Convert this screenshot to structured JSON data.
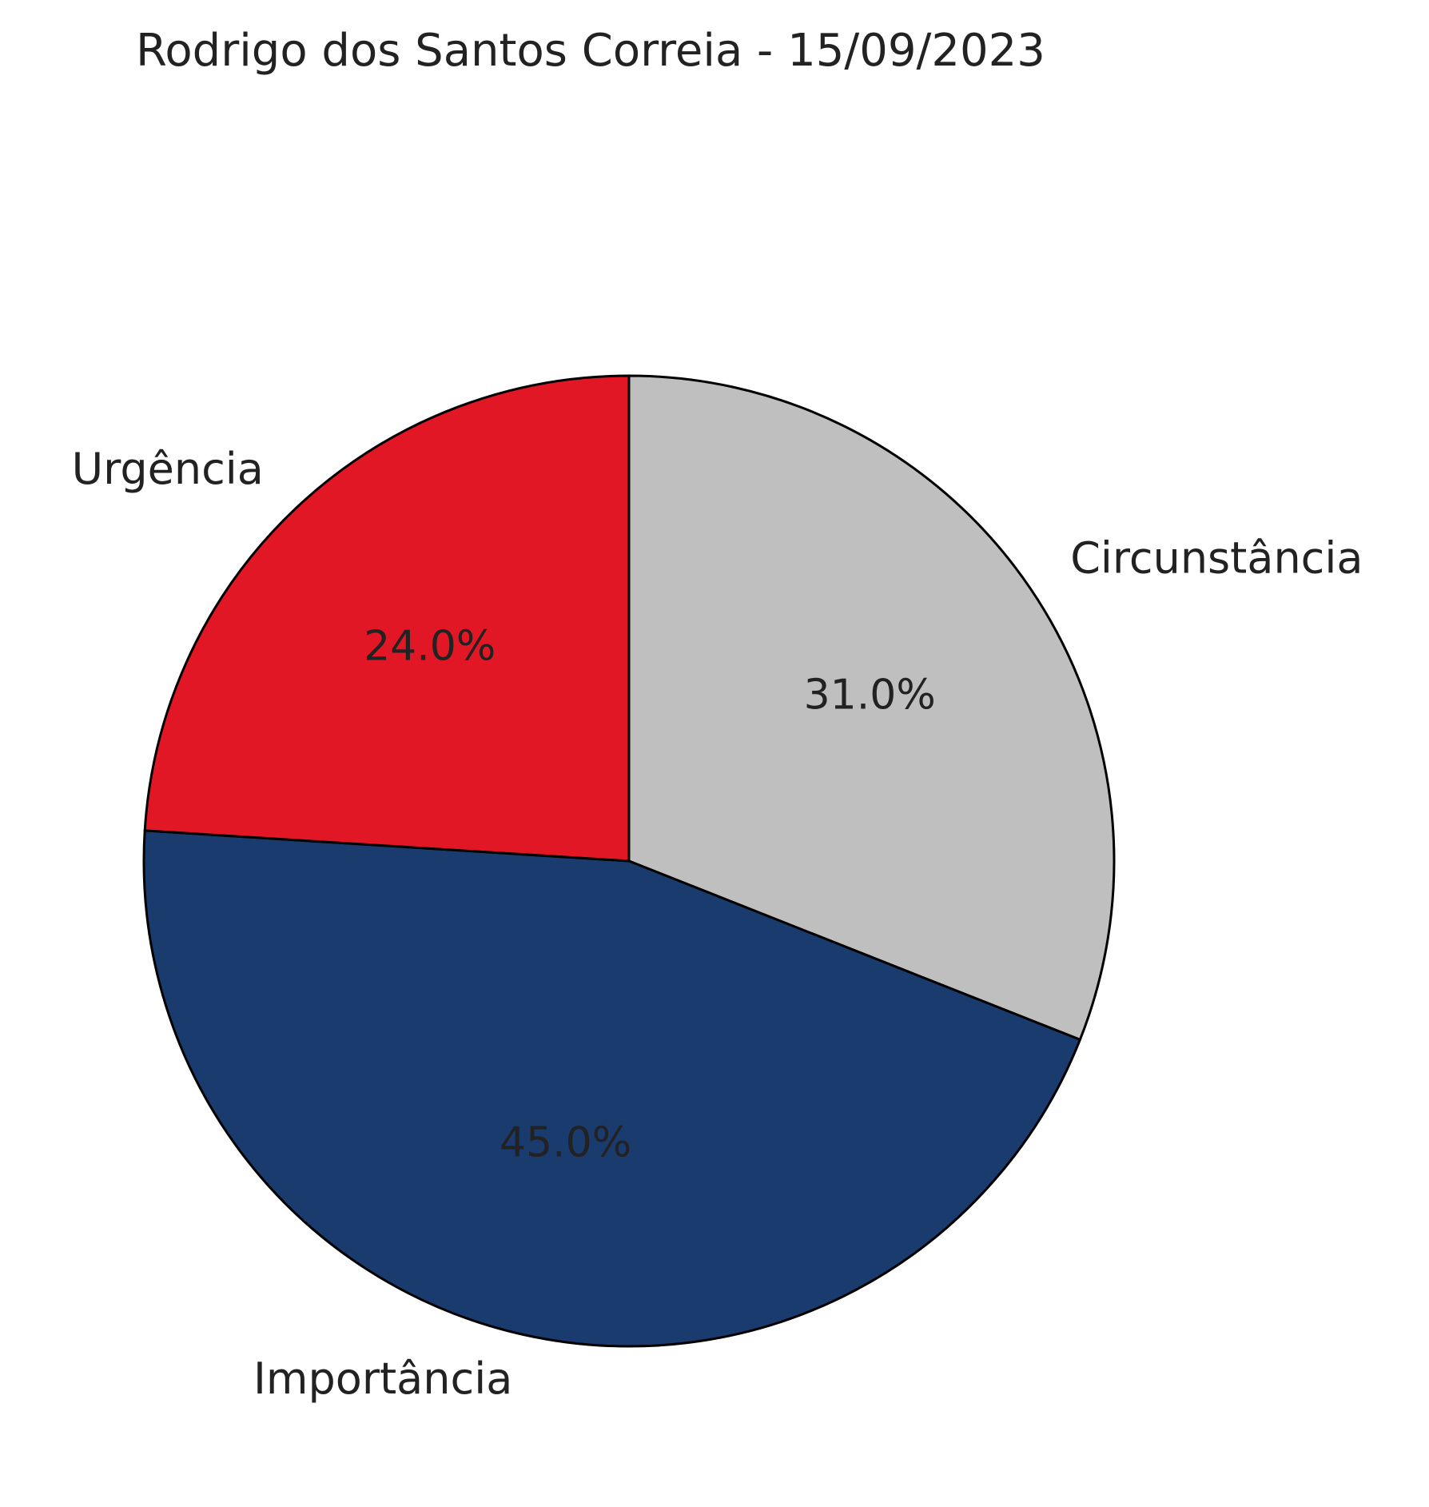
{
  "chart_data": {
    "type": "pie",
    "title": "Rodrigo dos Santos Correia - 15/09/2023",
    "categories": [
      "Circunstância",
      "Importância",
      "Urgência"
    ],
    "values": [
      31.0,
      45.0,
      24.0
    ],
    "value_labels": [
      "31.0%",
      "45.0%",
      "24.0%"
    ],
    "colors": [
      "#bebfbe",
      "#1a3b6e",
      "#e11726"
    ],
    "start_angle_deg": 90,
    "direction": "clockwise",
    "edge_color": "#000000"
  }
}
